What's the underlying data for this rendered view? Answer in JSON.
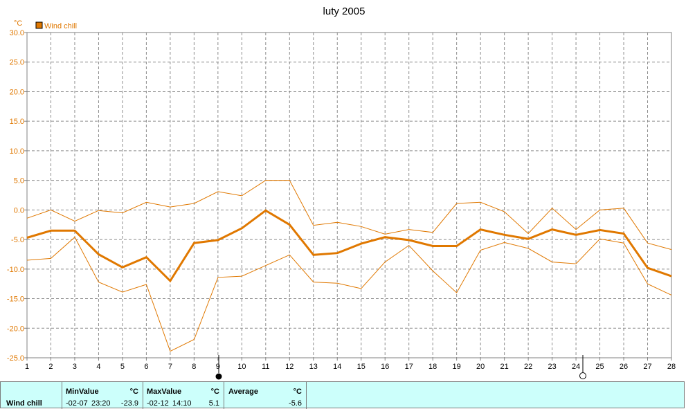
{
  "chart_data": {
    "type": "line",
    "title": "luty 2005",
    "unit": "°C",
    "legend": {
      "label": "Wind chill",
      "position": "top-left",
      "color": "#e07800"
    },
    "x": [
      1,
      2,
      3,
      4,
      5,
      6,
      7,
      8,
      9,
      10,
      11,
      12,
      13,
      14,
      15,
      16,
      17,
      18,
      19,
      20,
      21,
      22,
      23,
      24,
      25,
      26,
      27,
      28
    ],
    "xlim": [
      1,
      28
    ],
    "ylim": [
      -25,
      30
    ],
    "yticks": [
      "30.0",
      "25.0",
      "20.0",
      "15.0",
      "10.0",
      "5.0",
      "0.0",
      "-5.0",
      "-10.0",
      "-15.0",
      "-20.0",
      "-25.0"
    ],
    "grid": true,
    "series": [
      {
        "name": "Wind chill",
        "role": "average",
        "color": "#e07800",
        "values": [
          -4.7,
          -3.5,
          -3.5,
          -7.5,
          -9.7,
          -8.0,
          -12.0,
          -5.6,
          -5.1,
          -3.1,
          -0.1,
          -2.5,
          -7.6,
          -7.3,
          -5.7,
          -4.6,
          -5.1,
          -6.1,
          -6.1,
          -3.3,
          -4.2,
          -4.9,
          -3.3,
          -4.2,
          -3.4,
          -4.0,
          -9.8,
          -11.2
        ]
      },
      {
        "role": "max",
        "color": "#e07800",
        "values": [
          -1.4,
          0.0,
          -1.9,
          -0.1,
          -0.5,
          1.3,
          0.5,
          1.1,
          3.1,
          2.4,
          5.0,
          5.0,
          -2.6,
          -2.1,
          -2.8,
          -4.1,
          -3.3,
          -3.8,
          1.1,
          1.3,
          -0.3,
          -4.0,
          0.3,
          -3.3,
          0.0,
          0.3,
          -5.6,
          -6.7
        ]
      },
      {
        "role": "min",
        "color": "#e07800",
        "values": [
          -8.5,
          -8.2,
          -4.6,
          -12.2,
          -13.9,
          -12.6,
          -23.9,
          -21.9,
          -11.4,
          -11.2,
          -9.4,
          -7.6,
          -12.2,
          -12.4,
          -13.3,
          -8.8,
          -6.0,
          -10.3,
          -14.0,
          -6.8,
          -5.5,
          -6.5,
          -8.8,
          -9.1,
          -4.9,
          -5.6,
          -12.5,
          -14.4
        ]
      }
    ]
  },
  "stats": {
    "row_label": "Wind chill",
    "min": {
      "header": "MinValue",
      "unit": "°C",
      "date": "-02-07",
      "time": "23:20",
      "value": "-23.9"
    },
    "max": {
      "header": "MaxValue",
      "unit": "°C",
      "date": "-02-12",
      "time": "14:10",
      "value": "5.1"
    },
    "avg": {
      "header": "Average",
      "unit": "°C",
      "value": "-5.6"
    }
  }
}
